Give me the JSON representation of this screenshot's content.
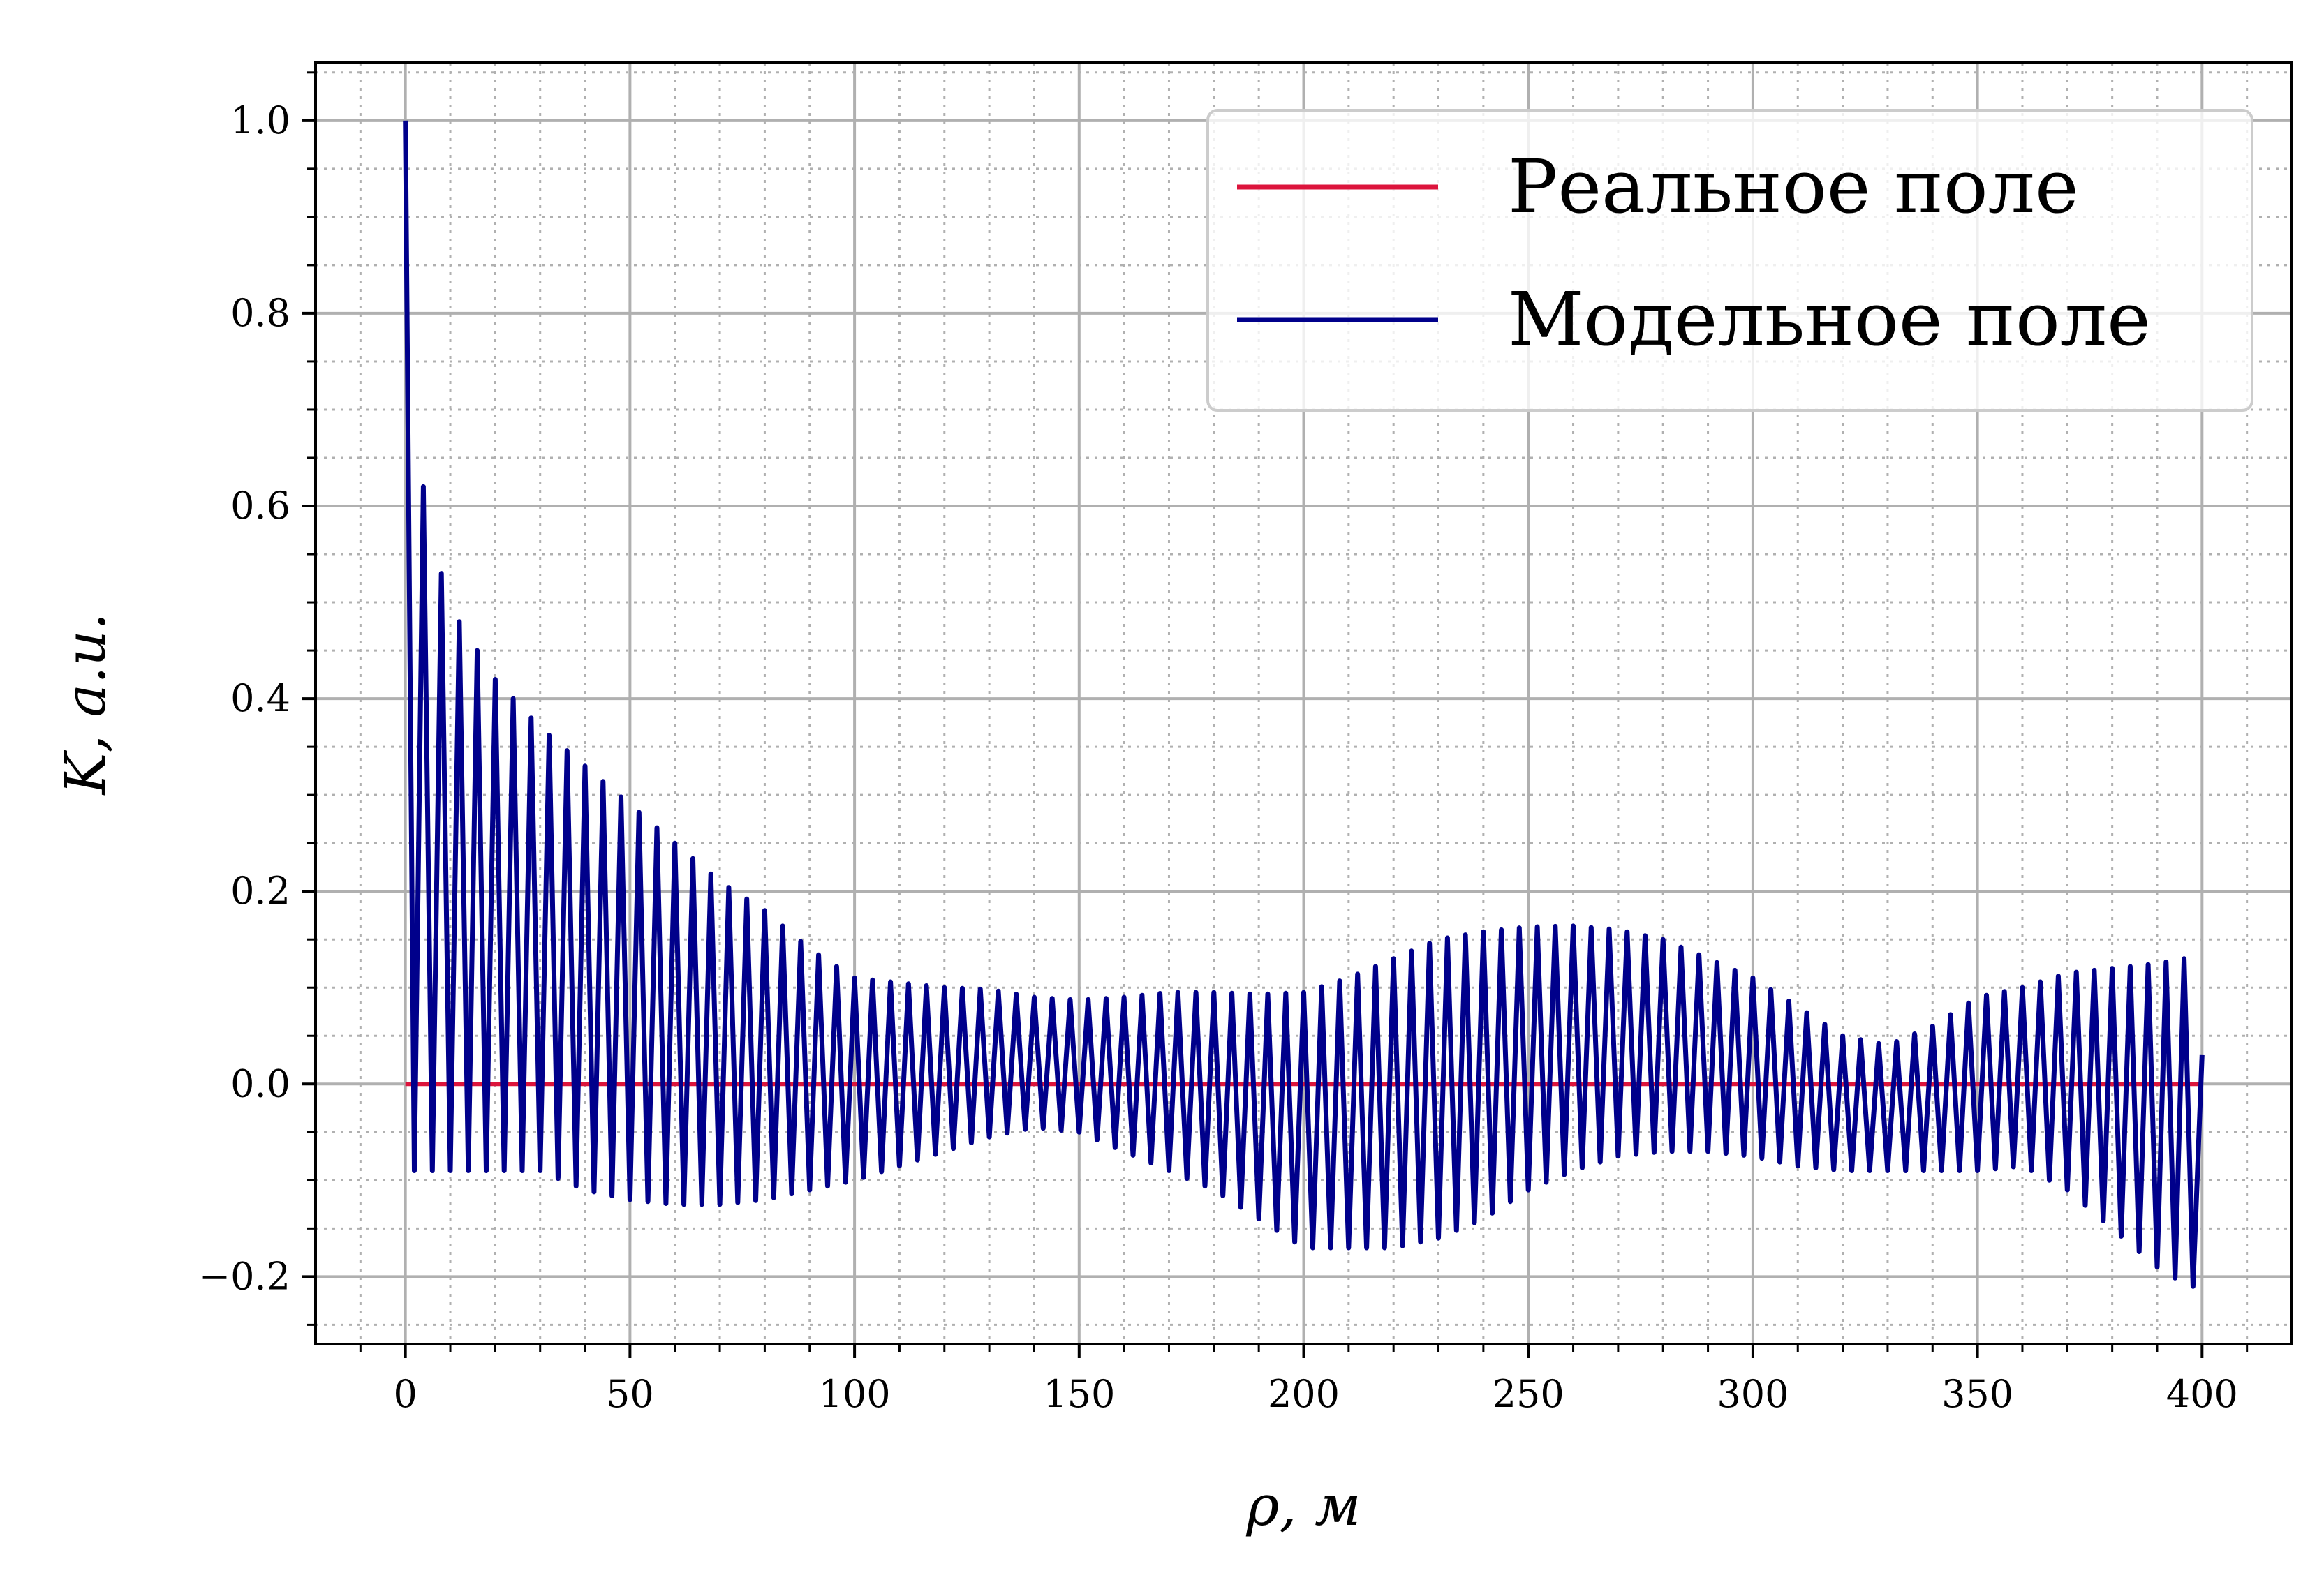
{
  "chart_data": {
    "type": "line",
    "title": "",
    "xlabel": "ρ, м",
    "ylabel": "K, a.u.",
    "xlim": [
      -20,
      420
    ],
    "ylim": [
      -0.27,
      1.06
    ],
    "x_ticks": [
      0,
      50,
      100,
      150,
      200,
      250,
      300,
      350,
      400
    ],
    "y_ticks": [
      -0.2,
      0.0,
      0.2,
      0.4,
      0.6,
      0.8,
      1.0
    ],
    "x_tick_labels": [
      "0",
      "50",
      "100",
      "150",
      "200",
      "250",
      "300",
      "350",
      "400"
    ],
    "y_tick_labels": [
      "−0.2",
      "0.0",
      "0.2",
      "0.4",
      "0.6",
      "0.8",
      "1.0"
    ],
    "grid": true,
    "minor_grid": true,
    "legend_position": "top-right",
    "oscillation_period": 4.0,
    "series": [
      {
        "name": "Реальное поле",
        "color": "#dc143c",
        "style": "flat",
        "x": [
          0,
          400
        ],
        "y": [
          0,
          0
        ]
      },
      {
        "name": "Модельное поле",
        "color": "#00008b",
        "style": "oscillating",
        "start": [
          0,
          1.0
        ],
        "end": [
          400,
          0.03
        ],
        "upper_envelope": {
          "x": [
            4,
            8,
            12,
            20,
            30,
            40,
            50,
            60,
            70,
            80,
            90,
            100,
            110,
            120,
            130,
            140,
            150,
            160,
            170,
            180,
            190,
            200,
            210,
            220,
            230,
            240,
            250,
            260,
            270,
            280,
            290,
            300,
            310,
            320,
            330,
            340,
            350,
            360,
            370,
            380,
            390,
            396
          ],
          "y": [
            0.62,
            0.53,
            0.48,
            0.42,
            0.37,
            0.33,
            0.29,
            0.25,
            0.21,
            0.18,
            0.14,
            0.11,
            0.105,
            0.1,
            0.098,
            0.09,
            0.087,
            0.09,
            0.095,
            0.095,
            0.093,
            0.095,
            0.11,
            0.13,
            0.15,
            0.158,
            0.163,
            0.164,
            0.16,
            0.15,
            0.13,
            0.11,
            0.08,
            0.05,
            0.04,
            0.06,
            0.09,
            0.1,
            0.115,
            0.12,
            0.125,
            0.13
          ]
        },
        "lower_envelope": {
          "x": [
            2,
            10,
            20,
            30,
            40,
            50,
            60,
            70,
            80,
            90,
            100,
            110,
            120,
            130,
            140,
            150,
            160,
            170,
            180,
            190,
            200,
            210,
            220,
            230,
            240,
            250,
            260,
            270,
            280,
            290,
            300,
            310,
            320,
            330,
            340,
            350,
            360,
            370,
            380,
            390,
            397
          ],
          "y": [
            -0.09,
            -0.09,
            -0.09,
            -0.09,
            -0.11,
            -0.12,
            -0.125,
            -0.125,
            -0.12,
            -0.11,
            -0.1,
            -0.085,
            -0.07,
            -0.055,
            -0.045,
            -0.05,
            -0.07,
            -0.09,
            -0.11,
            -0.14,
            -0.17,
            -0.17,
            -0.17,
            -0.16,
            -0.14,
            -0.11,
            -0.09,
            -0.075,
            -0.07,
            -0.07,
            -0.075,
            -0.085,
            -0.09,
            -0.09,
            -0.09,
            -0.09,
            -0.085,
            -0.11,
            -0.15,
            -0.19,
            -0.21
          ]
        }
      }
    ]
  }
}
